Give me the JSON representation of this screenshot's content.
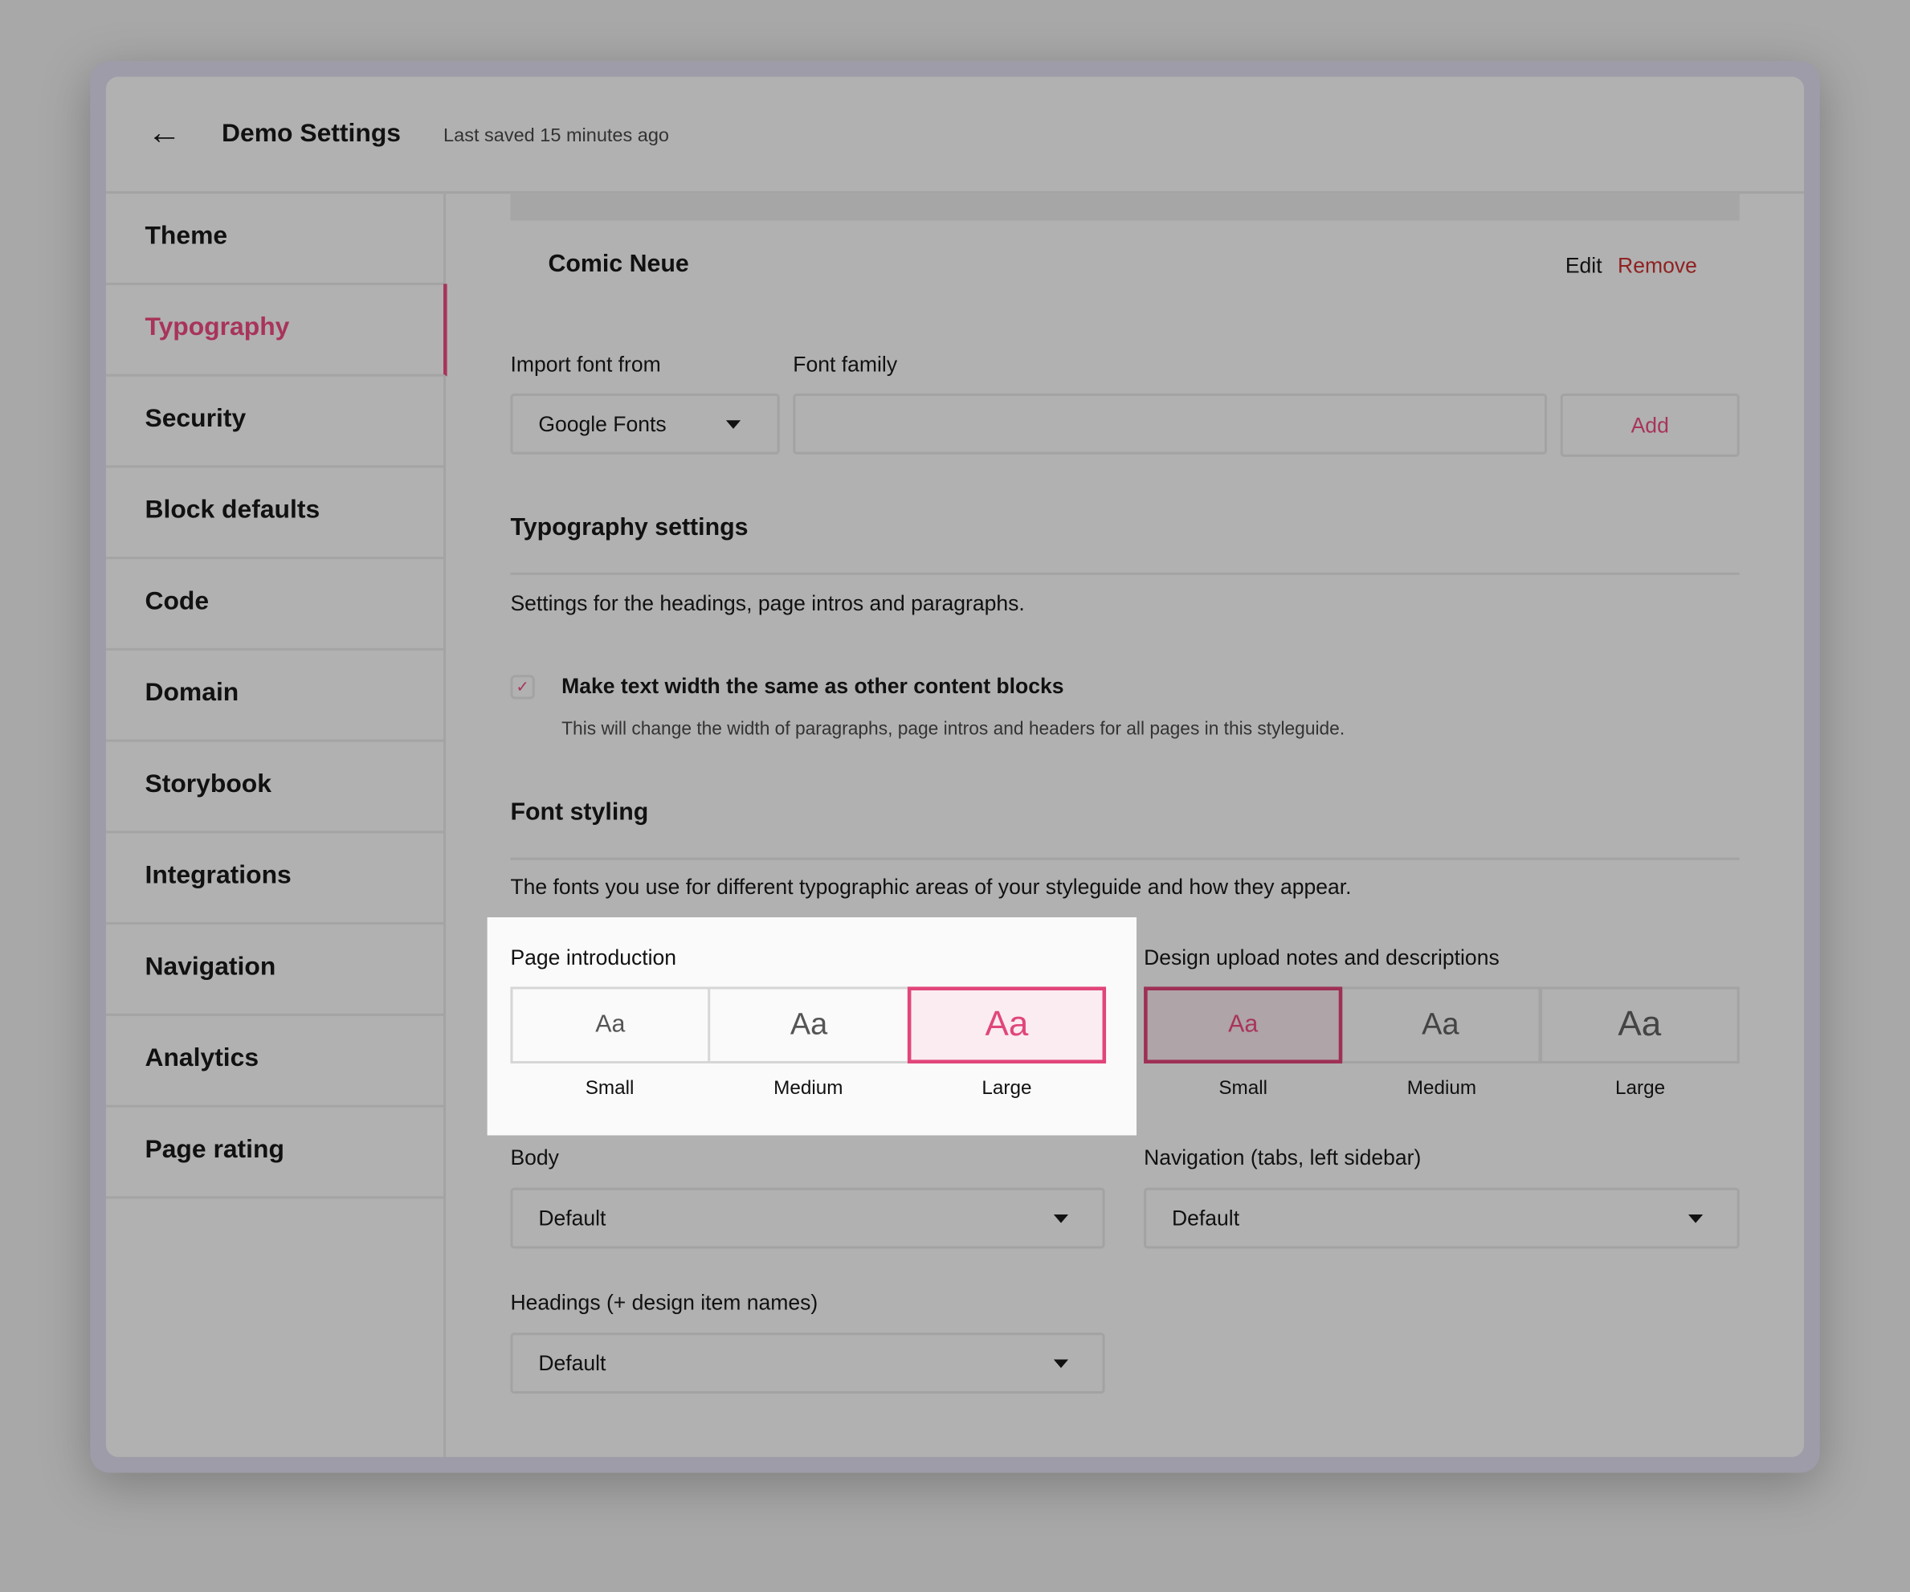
{
  "header": {
    "title": "Demo Settings",
    "last_saved": "Last saved 15 minutes ago",
    "back_icon": "arrow-left-icon"
  },
  "sidebar": {
    "items": [
      {
        "label": "Theme",
        "active": false
      },
      {
        "label": "Typography",
        "active": true
      },
      {
        "label": "Security",
        "active": false
      },
      {
        "label": "Block defaults",
        "active": false
      },
      {
        "label": "Code",
        "active": false
      },
      {
        "label": "Domain",
        "active": false
      },
      {
        "label": "Storybook",
        "active": false
      },
      {
        "label": "Integrations",
        "active": false
      },
      {
        "label": "Navigation",
        "active": false
      },
      {
        "label": "Analytics",
        "active": false
      },
      {
        "label": "Page rating",
        "active": false
      }
    ]
  },
  "font_card": {
    "name": "Comic Neue",
    "edit": "Edit",
    "remove": "Remove"
  },
  "import": {
    "source_label": "Import font from",
    "source_value": "Google Fonts",
    "family_label": "Font family",
    "family_value": "",
    "add": "Add"
  },
  "typography_settings": {
    "title": "Typography settings",
    "description": "Settings for the headings, page intros and paragraphs.",
    "checkbox_label": "Make text width the same as other content blocks",
    "checkbox_checked": true,
    "checkbox_help": "This will change the width of paragraphs, page intros and headers for all pages in this styleguide."
  },
  "font_styling": {
    "title": "Font styling",
    "description": "The fonts you use for different typographic areas of your styleguide and how they appear.",
    "page_intro": {
      "label": "Page introduction",
      "sample": "Aa",
      "options": [
        "Small",
        "Medium",
        "Large"
      ],
      "selected": "Large"
    },
    "design_notes": {
      "label": "Design upload notes and descriptions",
      "sample": "Aa",
      "options": [
        "Small",
        "Medium",
        "Large"
      ],
      "selected": "Small"
    },
    "body": {
      "label": "Body",
      "value": "Default"
    },
    "navigation": {
      "label": "Navigation (tabs, left sidebar)",
      "value": "Default"
    },
    "headings": {
      "label": "Headings (+ design item names)",
      "value": "Default"
    }
  },
  "colors": {
    "accent": "#e0467a",
    "accent_dim": "#a8345a",
    "remove": "#8f2222"
  }
}
